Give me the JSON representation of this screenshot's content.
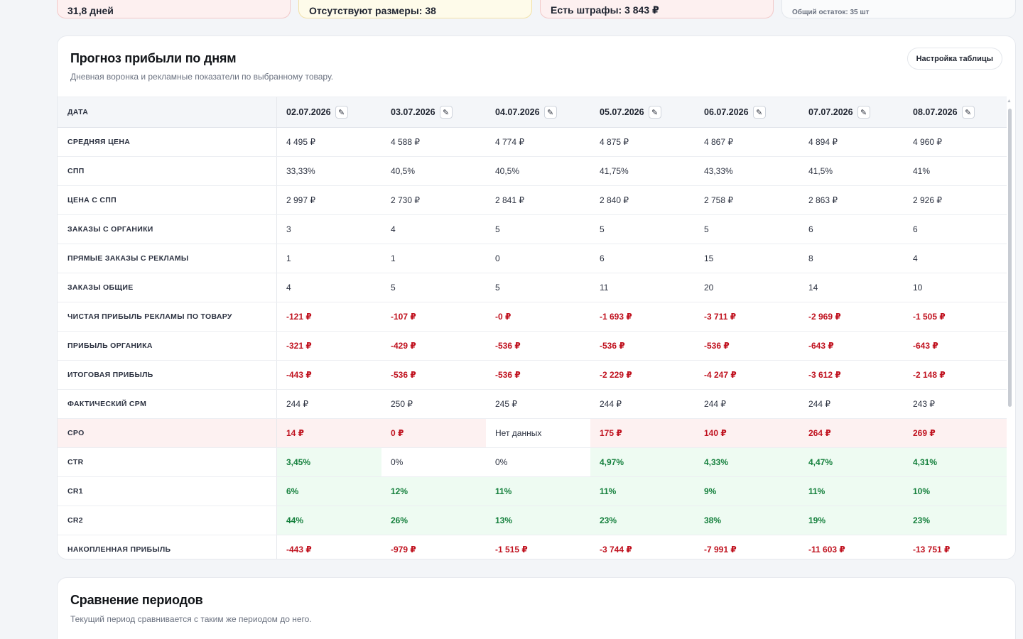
{
  "alerts": {
    "a1": "31,8 дней",
    "a2": "Отсутствуют размеры: 38",
    "a3": "Есть штрафы: 3 843 ₽",
    "a4": "Общий остаток: 35 шт"
  },
  "forecast": {
    "title": "Прогноз прибыли по дням",
    "subtitle": "Дневная воронка и рекламные показатели по выбранному товару.",
    "settings_label": "Настройка таблицы",
    "date_header": "ДАТА",
    "edit_glyph": "✎",
    "dates": [
      "02.07.2026",
      "03.07.2026",
      "04.07.2026",
      "05.07.2026",
      "06.07.2026",
      "07.07.2026",
      "08.07.2026"
    ],
    "rows": [
      {
        "label": "СРЕДНЯЯ ЦЕНА",
        "values": [
          "4 495 ₽",
          "4 588 ₽",
          "4 774 ₽",
          "4 875 ₽",
          "4 867 ₽",
          "4 894 ₽",
          "4 960 ₽"
        ]
      },
      {
        "label": "СПП",
        "values": [
          "33,33%",
          "40,5%",
          "40,5%",
          "41,75%",
          "43,33%",
          "41,5%",
          "41%"
        ]
      },
      {
        "label": "ЦЕНА С СПП",
        "values": [
          "2 997 ₽",
          "2 730 ₽",
          "2 841 ₽",
          "2 840 ₽",
          "2 758 ₽",
          "2 863 ₽",
          "2 926 ₽"
        ]
      },
      {
        "label": "ЗАКАЗЫ С ОРГАНИКИ",
        "values": [
          "3",
          "4",
          "5",
          "5",
          "5",
          "6",
          "6"
        ]
      },
      {
        "label": "ПРЯМЫЕ ЗАКАЗЫ С РЕКЛАМЫ",
        "values": [
          "1",
          "1",
          "0",
          "6",
          "15",
          "8",
          "4"
        ]
      },
      {
        "label": "ЗАКАЗЫ ОБЩИЕ",
        "values": [
          "4",
          "5",
          "5",
          "11",
          "20",
          "14",
          "10"
        ]
      },
      {
        "label": "ЧИСТАЯ ПРИБЫЛЬ РЕКЛАМЫ ПО ТОВАРУ",
        "values": [
          "-121 ₽",
          "-107 ₽",
          "-0 ₽",
          "-1 693 ₽",
          "-3 711 ₽",
          "-2 969 ₽",
          "-1 505 ₽"
        ]
      },
      {
        "label": "ПРИБЫЛЬ ОРГАНИКА",
        "values": [
          "-321 ₽",
          "-429 ₽",
          "-536 ₽",
          "-536 ₽",
          "-536 ₽",
          "-643 ₽",
          "-643 ₽"
        ]
      },
      {
        "label": "ИТОГОВАЯ ПРИБЫЛЬ",
        "values": [
          "-443 ₽",
          "-536 ₽",
          "-536 ₽",
          "-2 229 ₽",
          "-4 247 ₽",
          "-3 612 ₽",
          "-2 148 ₽"
        ]
      },
      {
        "label": "ФАКТИЧЕСКИЙ CPM",
        "values": [
          "244 ₽",
          "250 ₽",
          "245 ₽",
          "244 ₽",
          "244 ₽",
          "244 ₽",
          "243 ₽"
        ]
      },
      {
        "label": "CPO",
        "values": [
          "14 ₽",
          "0 ₽",
          "Нет данных",
          "175 ₽",
          "140 ₽",
          "264 ₽",
          "269 ₽"
        ]
      },
      {
        "label": "CTR",
        "values": [
          "3,45%",
          "0%",
          "0%",
          "4,97%",
          "4,33%",
          "4,47%",
          "4,31%"
        ]
      },
      {
        "label": "CR1",
        "values": [
          "6%",
          "12%",
          "11%",
          "11%",
          "9%",
          "11%",
          "10%"
        ]
      },
      {
        "label": "CR2",
        "values": [
          "44%",
          "26%",
          "13%",
          "23%",
          "38%",
          "19%",
          "23%"
        ]
      },
      {
        "label": "НАКОПЛЕННАЯ ПРИБЫЛЬ",
        "values": [
          "-443 ₽",
          "-979 ₽",
          "-1 515 ₽",
          "-3 744 ₽",
          "-7 991 ₽",
          "-11 603 ₽",
          "-13 751 ₽"
        ]
      }
    ],
    "colors": {
      "negative": "#c0121f",
      "positive": "#15803d",
      "bad_bg": "#fdf1f1",
      "good_bg": "#eefbf2"
    }
  },
  "compare": {
    "title": "Сравнение периодов",
    "subtitle": "Текущий период сравнивается с таким же периодом до него."
  }
}
